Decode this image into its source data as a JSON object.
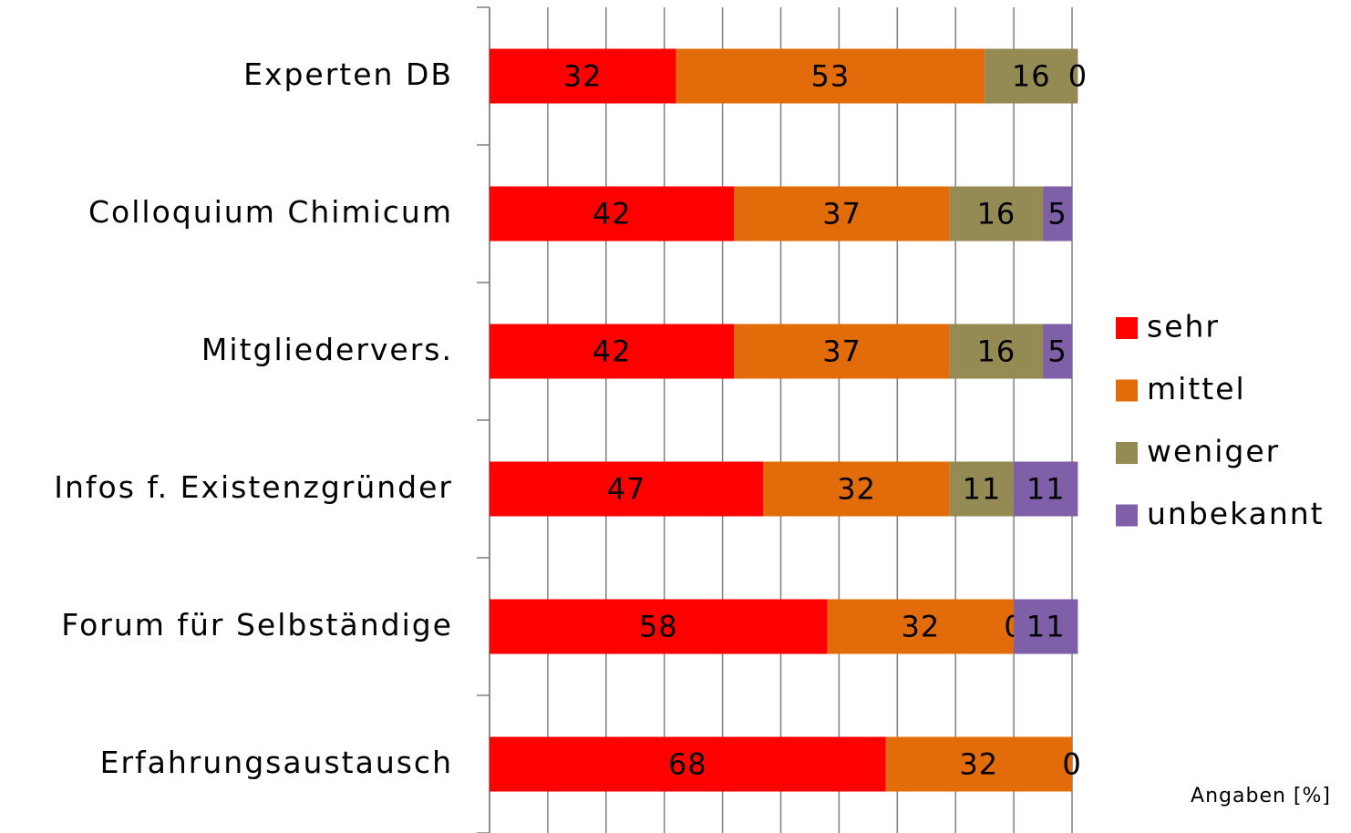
{
  "chart_data": {
    "type": "stacked-barh",
    "categories": [
      "Experten DB",
      "Colloquium Chimicum",
      "Mitgliedervers.",
      "Infos f. Existenzgründer",
      "Forum für Selbständige",
      "Erfahrungsaustausch"
    ],
    "series": [
      {
        "name": "sehr",
        "color": "#ff0000",
        "values": [
          32,
          42,
          42,
          47,
          58,
          68
        ]
      },
      {
        "name": "mittel",
        "color": "#e36c0a",
        "values": [
          53,
          37,
          37,
          32,
          32,
          32
        ]
      },
      {
        "name": "weniger",
        "color": "#948a54",
        "values": [
          16,
          16,
          16,
          11,
          0,
          0
        ]
      },
      {
        "name": "unbekannt",
        "color": "#7f5fa8",
        "values": [
          0,
          5,
          5,
          11,
          11,
          0
        ]
      }
    ],
    "xlim": [
      0,
      100
    ],
    "xticks": [
      0,
      10,
      20,
      30,
      40,
      50,
      60,
      70,
      80,
      90,
      100
    ],
    "grid": true,
    "legend": "right",
    "annotation": "Angaben [%]"
  }
}
